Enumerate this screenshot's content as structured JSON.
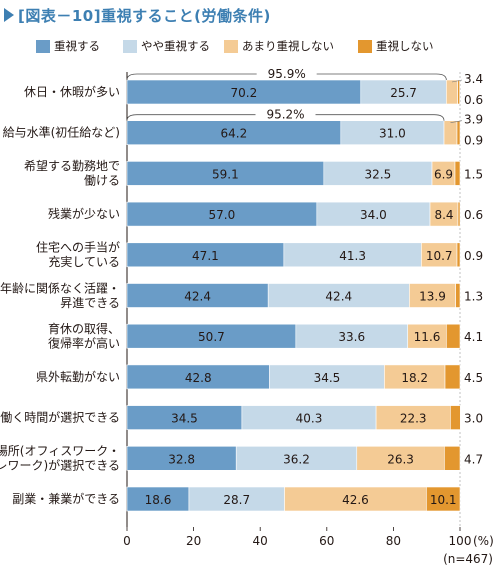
{
  "title": "[図表－10]重視すること(労働条件)",
  "colors": {
    "title": "#3d7fb2",
    "s1": "#6a9cc7",
    "s2": "#c5d9e8",
    "s3": "#f4cb95",
    "s4": "#e3972f"
  },
  "chart_data": {
    "type": "bar",
    "orientation": "horizontal",
    "stacked": true,
    "title": "[図表－10]重視すること(労働条件)",
    "categories": [
      "休日・休暇が多い",
      "給与水準(初任給など)",
      "希望する勤務地で\n働ける",
      "残業が少ない",
      "住宅への手当が\n充実している",
      "年齢に関係なく活躍・\n昇進できる",
      "育休の取得、\n復帰率が高い",
      "県外転勤がない",
      "働く時間が選択できる",
      "働く場所(オフィスワーク・\nテレワーク)が選択できる",
      "副業・兼業ができる"
    ],
    "series": [
      {
        "name": "重視する",
        "values": [
          70.2,
          64.2,
          59.1,
          57.0,
          47.1,
          42.4,
          50.7,
          42.8,
          34.5,
          32.8,
          18.6
        ]
      },
      {
        "name": "やや重視する",
        "values": [
          25.7,
          31.0,
          32.5,
          34.0,
          41.3,
          42.4,
          33.6,
          34.5,
          40.3,
          36.2,
          28.7
        ]
      },
      {
        "name": "あまり重視しない",
        "values": [
          3.4,
          3.9,
          6.9,
          8.4,
          10.7,
          13.9,
          11.6,
          18.2,
          22.3,
          26.3,
          42.6
        ]
      },
      {
        "name": "重視しない",
        "values": [
          0.6,
          0.9,
          1.5,
          0.6,
          0.9,
          1.3,
          4.1,
          4.5,
          3.0,
          4.7,
          10.1
        ]
      }
    ],
    "value_labels": [
      [
        "70.2",
        "25.7",
        "3.4",
        "0.6"
      ],
      [
        "64.2",
        "31.0",
        "3.9",
        "0.9"
      ],
      [
        "59.1",
        "32.5",
        "6.9",
        "1.5"
      ],
      [
        "57.0",
        "34.0",
        "8.4",
        "0.6"
      ],
      [
        "47.1",
        "41.3",
        "10.7",
        "0.9"
      ],
      [
        "42.4",
        "42.4",
        "13.9",
        "1.3"
      ],
      [
        "50.7",
        "33.6",
        "11.6",
        "4.1"
      ],
      [
        "42.8",
        "34.5",
        "18.2",
        "4.5"
      ],
      [
        "34.5",
        "40.3",
        "22.3",
        "3.0"
      ],
      [
        "32.8",
        "36.2",
        "26.3",
        "4.7"
      ],
      [
        "18.6",
        "28.7",
        "42.6",
        "10.1"
      ]
    ],
    "brackets": [
      {
        "row": 0,
        "label": "95.9%"
      },
      {
        "row": 1,
        "label": "95.2%"
      }
    ],
    "xlim": [
      0,
      100
    ],
    "xticks": [
      "0",
      "20",
      "40",
      "60",
      "80",
      "100"
    ],
    "x_unit": "(%)",
    "n_note": "(n=467)",
    "legend_position": "top"
  }
}
